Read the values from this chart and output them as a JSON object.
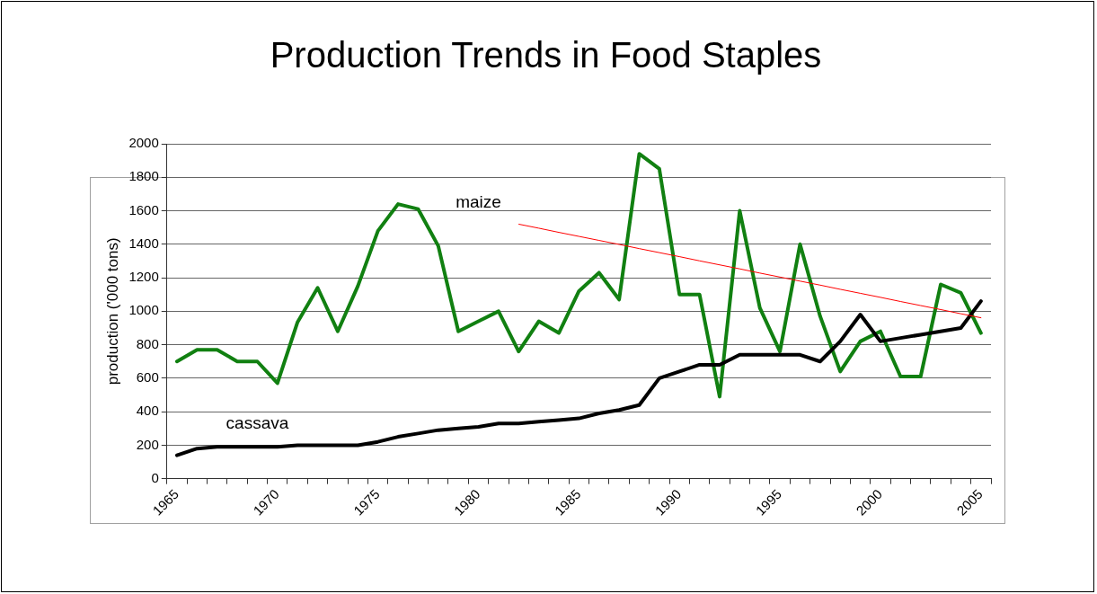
{
  "chart_data": {
    "type": "line",
    "title": "Production Trends in Food Staples",
    "ylabel": "production ('000 tons)",
    "categories": [
      "1965",
      null,
      null,
      null,
      null,
      "1970",
      null,
      null,
      null,
      null,
      "1975",
      null,
      null,
      null,
      null,
      "1980",
      null,
      null,
      null,
      null,
      "1985",
      null,
      null,
      null,
      null,
      "1990",
      null,
      null,
      null,
      null,
      "1995",
      null,
      null,
      null,
      null,
      "2000",
      null,
      null,
      null,
      null,
      "2005"
    ],
    "series": [
      {
        "name": "maize",
        "color": "#118011",
        "values": [
          700,
          770,
          770,
          700,
          700,
          570,
          935,
          1140,
          880,
          1150,
          1480,
          1640,
          1610,
          1390,
          880,
          940,
          1000,
          760,
          940,
          870,
          1120,
          1230,
          1070,
          1940,
          1850,
          1100,
          1100,
          490,
          1600,
          1020,
          760,
          1400,
          970,
          640,
          820,
          880,
          610,
          610,
          1160,
          1110,
          870
        ]
      },
      {
        "name": "cassava",
        "color": "#000000",
        "values": [
          140,
          180,
          190,
          190,
          190,
          190,
          200,
          200,
          200,
          200,
          220,
          250,
          270,
          290,
          300,
          310,
          330,
          330,
          340,
          350,
          360,
          390,
          410,
          440,
          600,
          640,
          680,
          680,
          740,
          740,
          740,
          740,
          700,
          820,
          980,
          820,
          840,
          860,
          880,
          900,
          1060
        ]
      },
      {
        "type": "line",
        "color": "#ff0000",
        "values": [
          null,
          null,
          null,
          null,
          null,
          null,
          null,
          null,
          null,
          null,
          null,
          null,
          null,
          null,
          null,
          null,
          null,
          1520,
          1496,
          1471,
          1447,
          1423,
          1399,
          1374,
          1350,
          1326,
          1301,
          1277,
          1253,
          1228,
          1204,
          1180,
          1156,
          1131,
          1107,
          1083,
          1058,
          1034,
          1010,
          985,
          961
        ]
      }
    ],
    "ylim": [
      0,
      2000
    ],
    "yticks": [
      0,
      200,
      400,
      600,
      800,
      1000,
      1200,
      1400,
      1600,
      1800,
      2000
    ],
    "grid": "y",
    "legend": false,
    "marker": "none",
    "line_style": "solid"
  }
}
